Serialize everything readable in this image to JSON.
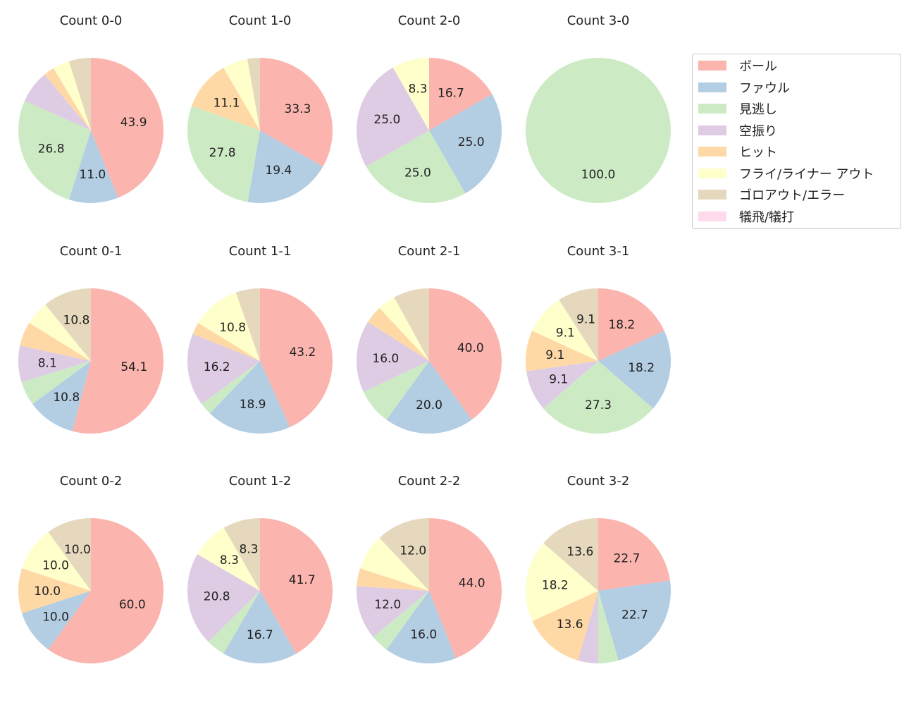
{
  "chart_data": {
    "type": "pie",
    "categories": [
      "ボール",
      "ファウル",
      "見逃し",
      "空振り",
      "ヒット",
      "フライ/ライナー アウト",
      "ゴロアウト/エラー",
      "犠飛/犠打"
    ],
    "colors": [
      "#fbb4ae",
      "#b3cde3",
      "#ccebc5",
      "#decbe4",
      "#fed9a6",
      "#ffffcc",
      "#e5d8bd",
      "#fddaec"
    ],
    "legend_placement": "upper right",
    "start": "top, clockwise",
    "pies": [
      {
        "title": "Count 0-0",
        "values": [
          43.9,
          11.0,
          26.8,
          7.3,
          2.4,
          3.7,
          4.9,
          0
        ]
      },
      {
        "title": "Count 1-0",
        "values": [
          33.3,
          19.4,
          27.8,
          0,
          11.1,
          5.6,
          2.8,
          0
        ]
      },
      {
        "title": "Count 2-0",
        "values": [
          16.7,
          25.0,
          25.0,
          25.0,
          0,
          8.3,
          0,
          0
        ]
      },
      {
        "title": "Count 3-0",
        "values": [
          0,
          0,
          100.0,
          0,
          0,
          0,
          0,
          0
        ]
      },
      {
        "title": "Count 0-1",
        "values": [
          54.1,
          10.8,
          5.4,
          8.1,
          5.4,
          5.4,
          10.8,
          0
        ]
      },
      {
        "title": "Count 1-1",
        "values": [
          43.2,
          18.9,
          2.7,
          16.2,
          2.7,
          10.8,
          5.4,
          0
        ]
      },
      {
        "title": "Count 2-1",
        "values": [
          40.0,
          20.0,
          8.0,
          16.0,
          4.0,
          4.0,
          8.0,
          0
        ]
      },
      {
        "title": "Count 3-1",
        "values": [
          18.2,
          18.2,
          27.3,
          9.1,
          9.1,
          9.1,
          9.1,
          0
        ]
      },
      {
        "title": "Count 0-2",
        "values": [
          60.0,
          10.0,
          0,
          0,
          10.0,
          10.0,
          10.0,
          0
        ]
      },
      {
        "title": "Count 1-2",
        "values": [
          41.7,
          16.7,
          4.2,
          20.8,
          0,
          8.3,
          8.3,
          0
        ]
      },
      {
        "title": "Count 2-2",
        "values": [
          44.0,
          16.0,
          4.0,
          12.0,
          4.0,
          8.0,
          12.0,
          0
        ]
      },
      {
        "title": "Count 3-2",
        "values": [
          22.7,
          22.7,
          4.5,
          4.5,
          13.6,
          18.2,
          13.6,
          0
        ]
      }
    ]
  }
}
